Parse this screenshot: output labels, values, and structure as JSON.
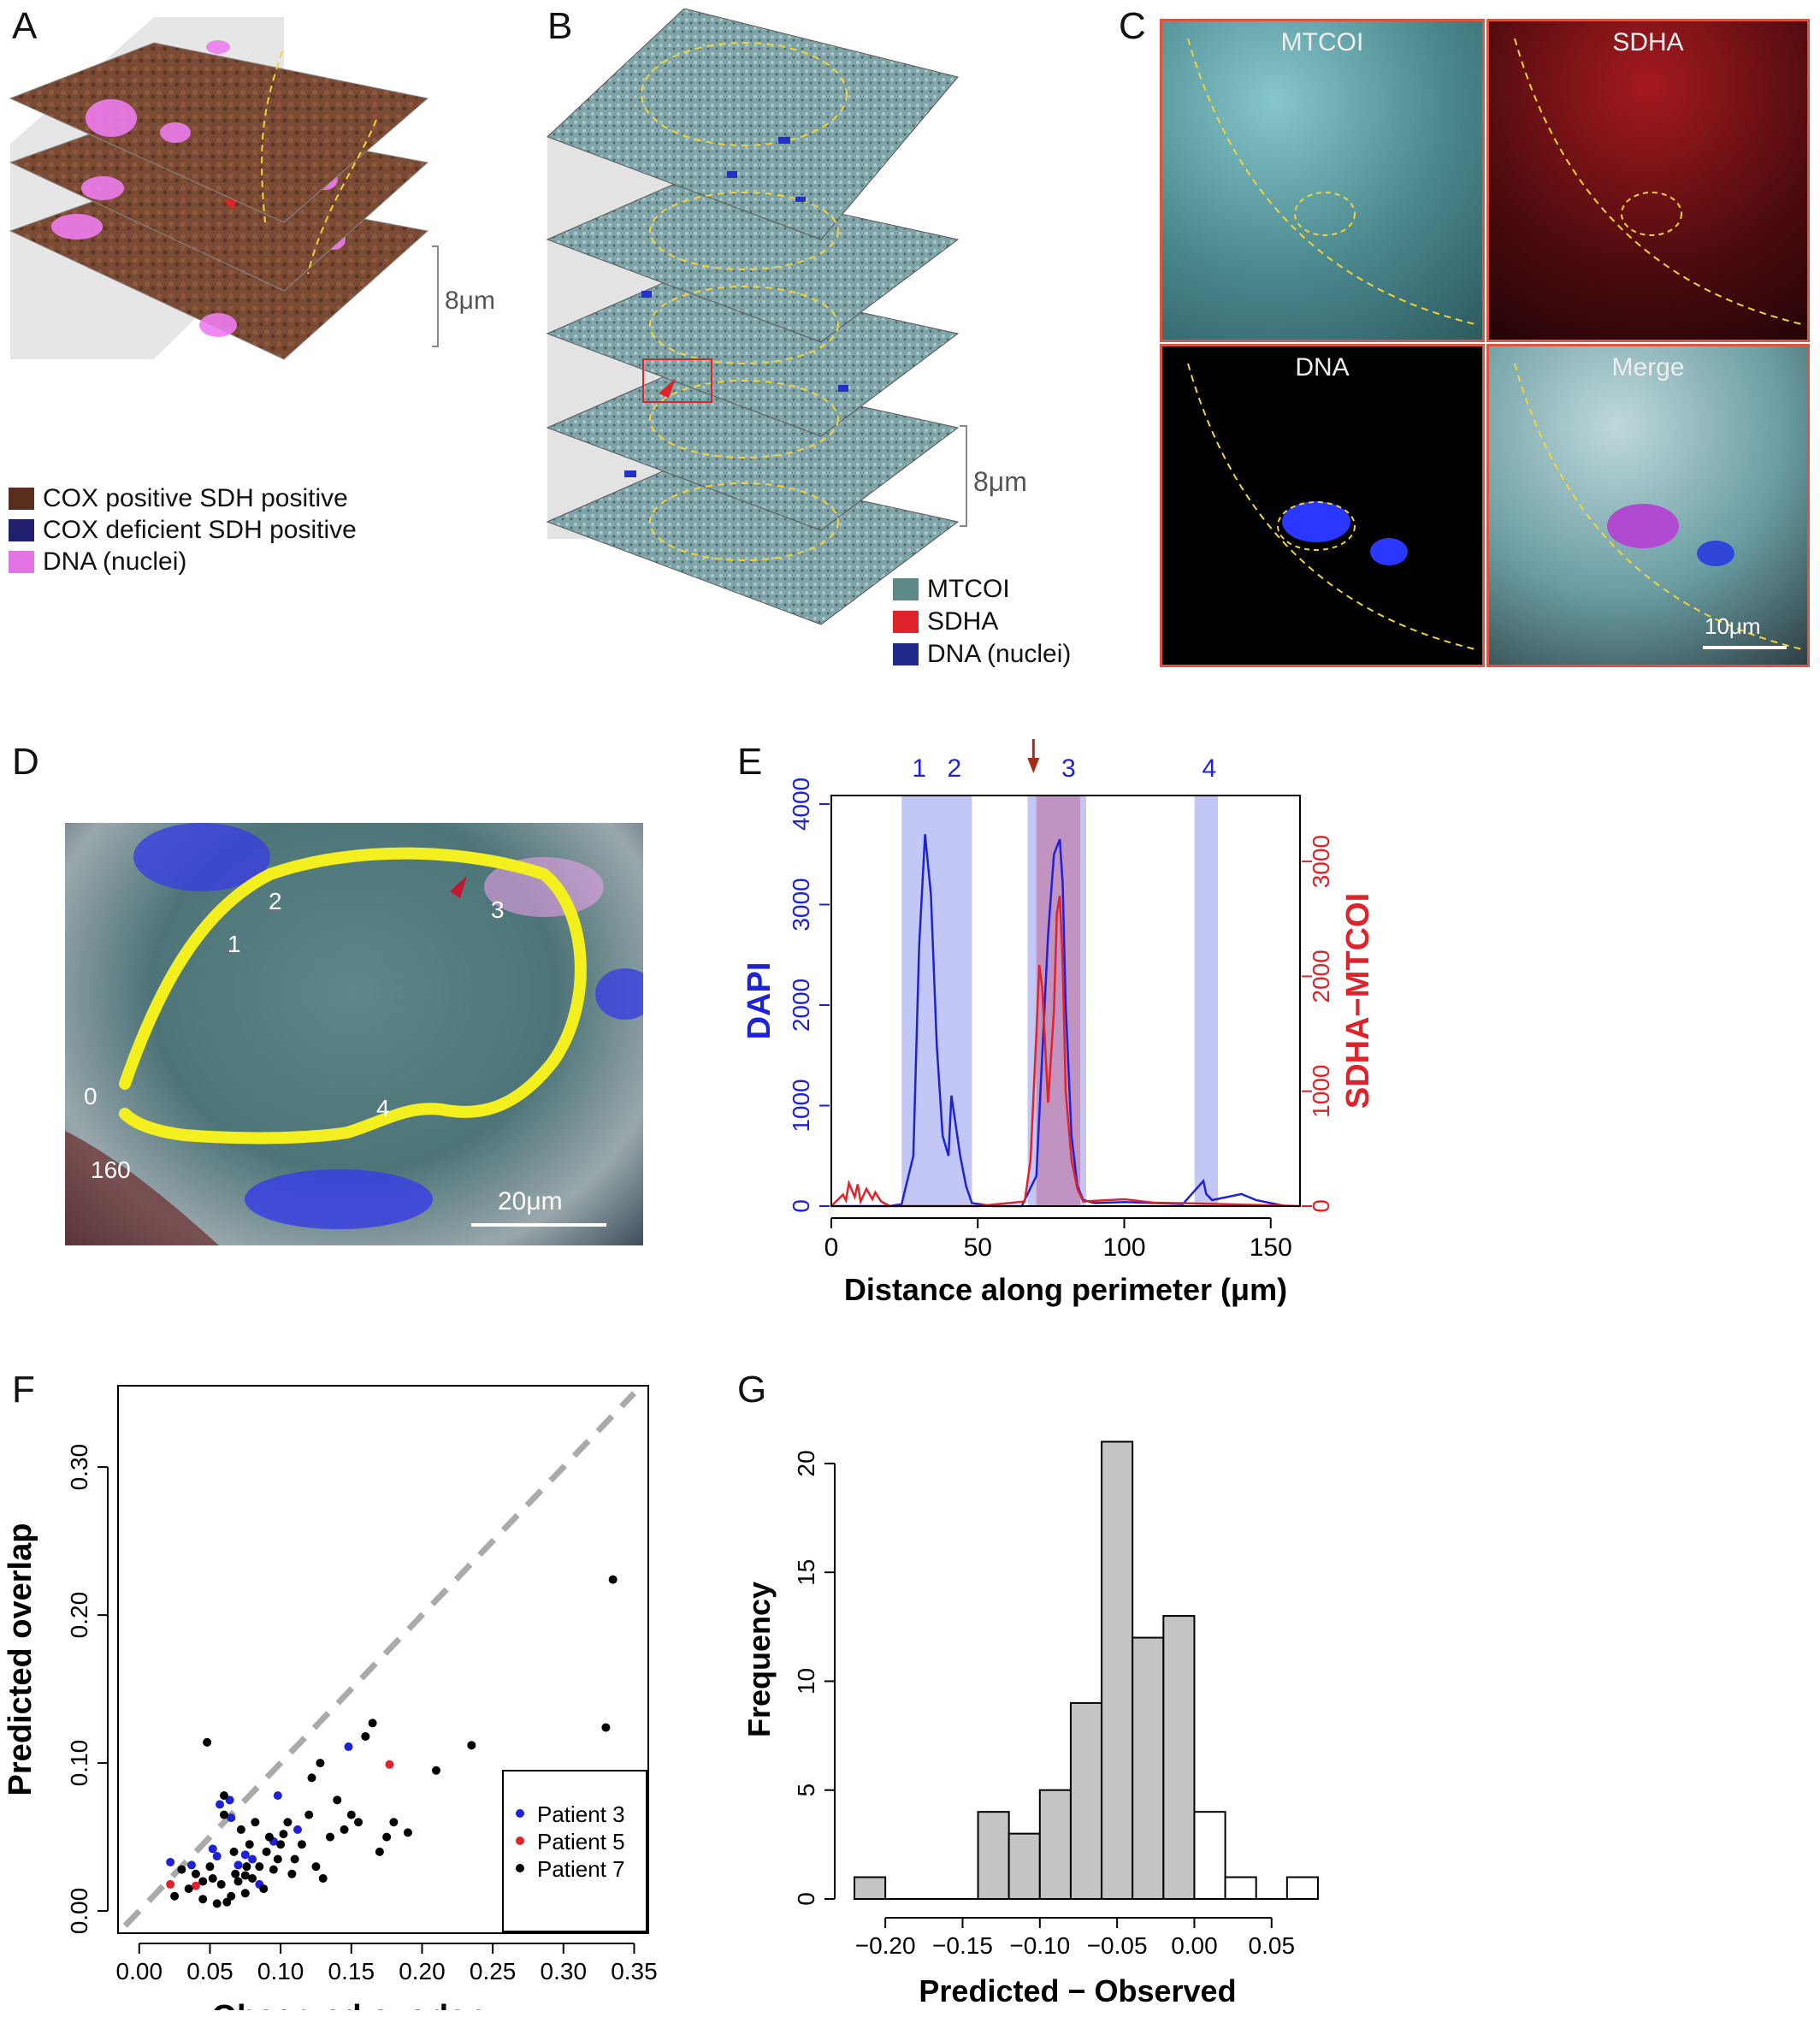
{
  "panels": {
    "A": "A",
    "B": "B",
    "C": "C",
    "D": "D",
    "E": "E",
    "F": "F",
    "G": "G"
  },
  "panelA": {
    "scale_label": "8μm",
    "legend": [
      {
        "label": "COX positive SDH positive",
        "color": "#5a2e1e"
      },
      {
        "label": "COX deficient SDH positive",
        "color": "#1f1f6e"
      },
      {
        "label": "DNA (nuclei)",
        "color": "#e374e3"
      }
    ]
  },
  "panelB": {
    "scale_label": "8μm",
    "legend": [
      {
        "label": "MTCOI",
        "color": "#5d8a88"
      },
      {
        "label": "SDHA",
        "color": "#e0232a"
      },
      {
        "label": "DNA (nuclei)",
        "color": "#1f2a8a"
      }
    ]
  },
  "panelC": {
    "titles": [
      "MTCOI",
      "SDHA",
      "DNA",
      "Merge"
    ],
    "scale_label": "10μm"
  },
  "panelD": {
    "labels": [
      "1",
      "2",
      "3",
      "4",
      "0",
      "160"
    ],
    "scale_label": "20μm"
  },
  "chart_data": [
    {
      "type": "line",
      "panel": "E",
      "xlabel": "Distance along perimeter (μm)",
      "ylabel_left": "DAPI",
      "ylabel_right": "SDHA−MTCOI",
      "xticks": [
        0,
        50,
        100,
        150
      ],
      "xlim": [
        0,
        160
      ],
      "yticks_left": [
        0,
        1000,
        2000,
        3000,
        4000
      ],
      "ylim_left": [
        0,
        4000
      ],
      "yticks_right": [
        0,
        1000,
        2000,
        3000
      ],
      "ylim_right": [
        0,
        3500
      ],
      "top_labels": [
        "1",
        "2",
        "3",
        "4"
      ],
      "bands": [
        {
          "x0": 24,
          "x1": 48,
          "color": "#b9bdf3"
        },
        {
          "x0": 67,
          "x1": 87,
          "color": "#b9bdf3"
        },
        {
          "x0": 70,
          "x1": 85,
          "color": "#c08ab6"
        },
        {
          "x0": 124,
          "x1": 132,
          "color": "#b9bdf3"
        }
      ],
      "series": [
        {
          "axis": "left",
          "color": "#1e22d6",
          "x": [
            0,
            20,
            24,
            28,
            30,
            32,
            34,
            36,
            38,
            40,
            41,
            42,
            43,
            44,
            46,
            48,
            55,
            65,
            70,
            72,
            74,
            76,
            78,
            79,
            80,
            82,
            84,
            86,
            90,
            100,
            120,
            127,
            128,
            130,
            140,
            145,
            155
          ],
          "y": [
            0,
            0,
            20,
            500,
            2600,
            3700,
            3100,
            1600,
            700,
            500,
            1100,
            900,
            700,
            500,
            200,
            30,
            0,
            0,
            300,
            1500,
            2700,
            3500,
            3650,
            3200,
            2000,
            700,
            200,
            60,
            30,
            40,
            20,
            250,
            120,
            60,
            120,
            60,
            0
          ]
        },
        {
          "axis": "right",
          "color": "#e0232a",
          "x": [
            0,
            4,
            5,
            6,
            8,
            9,
            10,
            12,
            14,
            15,
            17,
            20,
            30,
            50,
            66,
            68,
            70,
            71,
            72,
            74,
            76,
            77,
            78,
            79,
            80,
            82,
            84,
            86,
            100,
            110,
            130,
            160
          ],
          "y": [
            0,
            100,
            50,
            200,
            80,
            190,
            40,
            150,
            60,
            120,
            40,
            0,
            0,
            0,
            40,
            400,
            1500,
            2100,
            1900,
            900,
            1700,
            2550,
            2700,
            2100,
            1000,
            400,
            150,
            40,
            60,
            30,
            20,
            0
          ]
        }
      ]
    },
    {
      "type": "scatter",
      "panel": "F",
      "xlabel": "Observed overlap",
      "ylabel": "Predicted overlap",
      "xticks": [
        0.0,
        0.05,
        0.1,
        0.15,
        0.2,
        0.25,
        0.3,
        0.35
      ],
      "xtick_labels": [
        "0.00",
        "0.05",
        "0.10",
        "0.15",
        "0.20",
        "0.25",
        "0.30",
        "0.35"
      ],
      "xlim": [
        -0.015,
        0.36
      ],
      "yticks": [
        0.0,
        0.1,
        0.2,
        0.3
      ],
      "ytick_labels": [
        "0.00",
        "0.10",
        "0.20",
        "0.30"
      ],
      "ylim": [
        -0.015,
        0.355
      ],
      "reference_line": "y = x (dashed gray)",
      "legend": [
        {
          "label": "Patient 3",
          "color": "#1e22d6"
        },
        {
          "label": "Patient 5",
          "color": "#e0232a"
        },
        {
          "label": "Patient 7",
          "color": "#000000"
        }
      ],
      "series": [
        {
          "name": "Patient 3",
          "color": "#1e22d6",
          "x": [
            0.022,
            0.037,
            0.055,
            0.057,
            0.065,
            0.07,
            0.075,
            0.08,
            0.085,
            0.095,
            0.098,
            0.112,
            0.148,
            0.064,
            0.052
          ],
          "y": [
            0.033,
            0.031,
            0.037,
            0.072,
            0.063,
            0.031,
            0.038,
            0.035,
            0.018,
            0.047,
            0.078,
            0.055,
            0.111,
            0.075,
            0.042
          ]
        },
        {
          "name": "Patient 5",
          "color": "#e0232a",
          "x": [
            0.022,
            0.04,
            0.177
          ],
          "y": [
            0.018,
            0.017,
            0.099
          ]
        },
        {
          "name": "Patient 7",
          "color": "#000000",
          "x": [
            0.025,
            0.03,
            0.035,
            0.04,
            0.045,
            0.048,
            0.05,
            0.052,
            0.055,
            0.058,
            0.06,
            0.062,
            0.065,
            0.067,
            0.068,
            0.07,
            0.072,
            0.075,
            0.076,
            0.078,
            0.08,
            0.082,
            0.085,
            0.088,
            0.09,
            0.092,
            0.095,
            0.098,
            0.1,
            0.102,
            0.105,
            0.108,
            0.11,
            0.115,
            0.12,
            0.122,
            0.125,
            0.128,
            0.13,
            0.135,
            0.14,
            0.145,
            0.15,
            0.155,
            0.16,
            0.165,
            0.17,
            0.175,
            0.18,
            0.19,
            0.21,
            0.235,
            0.33,
            0.335,
            0.045,
            0.06,
            0.075
          ],
          "y": [
            0.01,
            0.028,
            0.015,
            0.025,
            0.008,
            0.114,
            0.03,
            0.022,
            0.005,
            0.018,
            0.078,
            0.006,
            0.01,
            0.04,
            0.025,
            0.02,
            0.055,
            0.012,
            0.03,
            0.045,
            0.022,
            0.06,
            0.03,
            0.015,
            0.04,
            0.05,
            0.028,
            0.035,
            0.045,
            0.052,
            0.06,
            0.025,
            0.035,
            0.045,
            0.065,
            0.09,
            0.03,
            0.1,
            0.022,
            0.05,
            0.075,
            0.055,
            0.065,
            0.06,
            0.118,
            0.127,
            0.04,
            0.05,
            0.06,
            0.053,
            0.095,
            0.112,
            0.124,
            0.224,
            0.02,
            0.065,
            0.024
          ]
        }
      ]
    },
    {
      "type": "bar",
      "panel": "G",
      "xlabel": "Predicted − Observed",
      "ylabel": "Frequency",
      "xticks": [
        -0.2,
        -0.15,
        -0.1,
        -0.05,
        0.0,
        0.05
      ],
      "xtick_labels": [
        "−0.20",
        "−0.15",
        "−0.10",
        "−0.05",
        "0.00",
        "0.05"
      ],
      "xlim": [
        -0.225,
        0.085
      ],
      "yticks": [
        0,
        5,
        10,
        15,
        20
      ],
      "ylim": [
        0,
        22
      ],
      "bin_edges": [
        -0.22,
        -0.2,
        -0.18,
        -0.16,
        -0.14,
        -0.12,
        -0.1,
        -0.08,
        -0.06,
        -0.04,
        -0.02,
        0.0,
        0.02,
        0.04,
        0.06,
        0.08
      ],
      "values": [
        1,
        0,
        0,
        0,
        4,
        3,
        5,
        9,
        21,
        12,
        13,
        4,
        1,
        0,
        1
      ],
      "fill_gray_until": 0.0,
      "gray_color": "#c4c4c4",
      "white_color": "#ffffff"
    }
  ]
}
